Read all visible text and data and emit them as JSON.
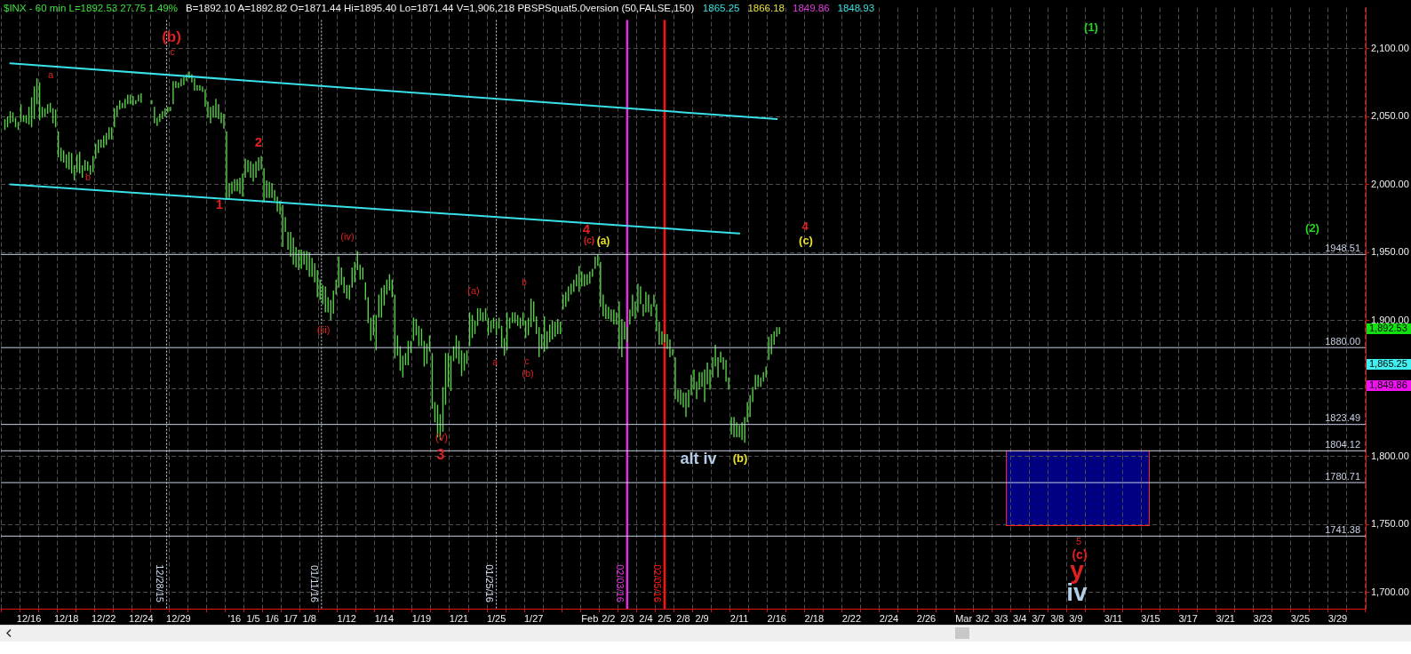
{
  "chart_data": {
    "type": "bar",
    "title": "$INX - 60 min L=1892.53 27.75 1.49%",
    "subtitle": "B=1892.10 A=1892.82 O=1871.44 Hi=1895.40 Lo=1871.44 V=1,906,218 PBSPSquat5.0version (50,FALSE,150)",
    "categories": [
      null,
      "12/16",
      null,
      "12/18",
      null,
      "12/22",
      null,
      "12/24",
      null,
      "12/29",
      null,
      null,
      "'16",
      "1/5",
      "1/6",
      "1/7",
      "1/8",
      null,
      "1/12",
      null,
      "1/14",
      null,
      "1/19",
      null,
      "1/21",
      null,
      "1/25",
      null,
      "1/27",
      null,
      null,
      "Feb",
      "2/2",
      "2/3",
      "2/4",
      "2/5",
      "2/8",
      "2/9",
      null,
      "2/11",
      null,
      "2/16",
      null,
      "2/18",
      null,
      "2/22",
      null,
      "2/24",
      null,
      "2/26",
      null,
      "Mar",
      "3/2",
      "3/3",
      "3/4",
      "3/7",
      "3/8",
      "3/9",
      null,
      "3/11",
      null,
      "3/15",
      null,
      "3/17",
      null,
      "3/21",
      null,
      "3/23",
      null,
      "3/25",
      null,
      "3/29",
      null
    ],
    "ylim": [
      1688,
      2130
    ],
    "yticks": [
      {
        "value": 1700,
        "label": "1,700.00"
      },
      {
        "value": 1750,
        "label": "1,750.00"
      },
      {
        "value": 1800,
        "label": "1,800.00"
      },
      {
        "value": 1850,
        "label": null
      },
      {
        "value": 1900,
        "label": "1,900.00"
      },
      {
        "value": 1950,
        "label": "1,950.00"
      },
      {
        "value": 2000,
        "label": "2,000.00"
      },
      {
        "value": 2050,
        "label": "2,050.00"
      },
      {
        "value": 2100,
        "label": "2,100.00"
      }
    ],
    "grid": true,
    "legend": false,
    "series": [
      {
        "color": "#58d048",
        "base": [
          null,
          2046,
          2047,
          2020,
          2009,
          2019,
          2042,
          2058,
          2059,
          2054,
          2078,
          2049,
          1989,
          2005,
          1987,
          1954,
          1938,
          1915,
          1924,
          1937,
          1878,
          1872,
          1885,
          1835,
          1848,
          1881,
          1889,
          1878,
          1887,
          1877,
          1908,
          1925,
          1910,
          1879,
          1906,
          1892,
          1842,
          1849,
          1858,
          1816,
          1829,
          1871,
          null,
          null,
          null,
          null,
          null,
          null,
          null,
          null,
          null,
          null,
          null,
          null,
          null,
          null,
          null,
          null,
          null,
          null,
          null,
          null,
          null,
          null,
          null,
          null,
          null,
          null,
          null,
          null,
          null,
          null,
          null
        ],
        "values": [
          null,
          13,
          28,
          19,
          13,
          11,
          14,
          7,
          3,
          3,
          5,
          12,
          50,
          14,
          25,
          31,
          14,
          15,
          23,
          14,
          26,
          47,
          17,
          41,
          26,
          25,
          13,
          28,
          13,
          26,
          11,
          11,
          33,
          35,
          21,
          20,
          31,
          15,
          15,
          13,
          16,
          17,
          null,
          null,
          null,
          null,
          null,
          null,
          null,
          null,
          null,
          null,
          null,
          null,
          null,
          null,
          null,
          null,
          null,
          null,
          null,
          null,
          null,
          null,
          null,
          null,
          null,
          null,
          null,
          null,
          null,
          null,
          null
        ]
      },
      {
        "color": "#58d048",
        "base": [
          2040,
          2046,
          2049,
          2017,
          2008,
          2023,
          2050,
          2059,
          2045,
          2059,
          2075,
          2045,
          1990,
          2009,
          1990,
          1965,
          1941,
          1912,
          1926,
          1930,
          1902,
          1874,
          1889,
          1825,
          1870,
          1887,
          1891,
          1894,
          1889,
          1879,
          1910,
          1925,
          1903,
          1873,
          1912,
          1882,
          1840,
          1842,
          1866,
          1814,
          1840,
          1875,
          null,
          null,
          null,
          null,
          null,
          null,
          null,
          null,
          null,
          null,
          null,
          null,
          null,
          null,
          null,
          null,
          null,
          null,
          null,
          null,
          null,
          null,
          null,
          null,
          null,
          null,
          null,
          null,
          null,
          null,
          null
        ],
        "values": [
          8,
          5,
          8,
          10,
          16,
          10,
          8,
          3,
          12,
          17,
          6,
          12,
          11,
          9,
          13,
          11,
          10,
          14,
          13,
          11,
          17,
          15,
          12,
          15,
          11,
          17,
          9,
          8,
          13,
          13,
          11,
          9,
          16,
          28,
          13,
          17,
          9,
          13,
          16,
          15,
          11,
          15,
          null,
          null,
          null,
          null,
          null,
          null,
          null,
          null,
          null,
          null,
          null,
          null,
          null,
          null,
          null,
          null,
          null,
          null,
          null,
          null,
          null,
          null,
          null,
          null,
          null,
          null,
          null,
          null,
          null,
          null,
          null
        ]
      },
      {
        "color": "#58d048",
        "base": [
          2042,
          2045,
          2050,
          2016,
          2005,
          2027,
          2055,
          2061,
          2043,
          2071,
          2069,
          2049,
          1993,
          2005,
          1990,
          1952,
          1937,
          1906,
          1920,
          1930,
          1902,
          1863,
          1881,
          1814,
          1872,
          1890,
          1894,
          1898,
          1895,
          1884,
          1914,
          1926,
          1901,
          1886,
          1903,
          1882,
          1838,
          1849,
          1858,
          1814,
          1849,
          1882,
          null,
          null,
          null,
          null,
          null,
          null,
          null,
          null,
          null,
          null,
          null,
          null,
          null,
          null,
          null,
          null,
          null,
          null,
          null,
          null,
          null,
          null,
          null,
          null,
          null,
          null,
          null,
          null,
          null,
          null,
          null
        ],
        "values": [
          8,
          6,
          6,
          9,
          9,
          6,
          7,
          5,
          6,
          5,
          9,
          9,
          9,
          12,
          12,
          13,
          14,
          19,
          12,
          9,
          22,
          18,
          15,
          24,
          17,
          10,
          8,
          8,
          21,
          13,
          11,
          8,
          11,
          13,
          9,
          10,
          11,
          13,
          15,
          11,
          11,
          10,
          null,
          null,
          null,
          null,
          null,
          null,
          null,
          null,
          null,
          null,
          null,
          null,
          null,
          null,
          null,
          null,
          null,
          null,
          null,
          null,
          null,
          null,
          null,
          null,
          null,
          null,
          null,
          null,
          null,
          null,
          null
        ]
      },
      {
        "color": "#58d048",
        "base": [
          2045,
          2044,
          2052,
          2012,
          2010,
          2027,
          2056,
          2060,
          2046,
          2071,
          2069,
          2049,
          1995,
          2002,
          1990,
          1947,
          1932,
          1906,
          1916,
          1915,
          1911,
          1858,
          1881,
          1812,
          1868,
          1896,
          1889,
          1898,
          1899,
          1886,
          1919,
          1927,
          1901,
          1884,
          1906,
          1884,
          1836,
          1851,
          1869,
          1814,
          1851,
          1888,
          null,
          null,
          null,
          null,
          null,
          null,
          null,
          null,
          null,
          null,
          null,
          null,
          null,
          null,
          null,
          null,
          null,
          null,
          null,
          null,
          null,
          null,
          null,
          null,
          null,
          null,
          null,
          null,
          null,
          null,
          null
        ],
        "values": [
          9,
          13,
          7,
          10,
          8,
          9,
          4,
          7,
          6,
          4,
          4,
          14,
          9,
          13,
          11,
          18,
          18,
          11,
          10,
          13,
          15,
          16,
          13,
          19,
          17,
          13,
          11,
          8,
          15,
          14,
          8,
          9,
          9,
          11,
          15,
          6,
          11,
          11,
          8,
          9,
          9,
          7,
          null,
          null,
          null,
          null,
          null,
          null,
          null,
          null,
          null,
          null,
          null,
          null,
          null,
          null,
          null,
          null,
          null,
          null,
          null,
          null,
          null,
          null,
          null,
          null,
          null,
          null,
          null,
          null,
          null,
          null,
          null
        ]
      },
      {
        "color": "#58d048",
        "base": [
          2046,
          2042,
          2053,
          2011,
          2010,
          2029,
          2056,
          null,
          2048,
          2072,
          2069,
          2048,
          1995,
          2005,
          1988,
          1941,
          1932,
          1900,
          1915,
          1898,
          1919,
          1867,
          1866,
          1818,
          1859,
          1900,
          1894,
          1896,
          1890,
          1888,
          1921,
          1932,
          1899,
          1897,
          1906,
          1879,
          1829,
          1840,
          1864,
          1812,
          1851,
          1890,
          null,
          null,
          null,
          null,
          null,
          null,
          null,
          null,
          null,
          null,
          null,
          null,
          null,
          null,
          null,
          null,
          null,
          null,
          null,
          null,
          null,
          null,
          null,
          null,
          null,
          null,
          null,
          null,
          null,
          null,
          null
        ],
        "values": [
          7,
          22,
          7,
          13,
          7,
          9,
          7,
          null,
          6,
          6,
          4,
          11,
          9,
          12,
          8,
          20,
          14,
          15,
          11,
          19,
          11,
          9,
          19,
          33,
          19,
          9,
          8,
          8,
          13,
          11,
          9,
          6,
          9,
          11,
          13,
          11,
          18,
          24,
          9,
          13,
          7,
          5,
          null,
          null,
          null,
          null,
          null,
          null,
          null,
          null,
          null,
          null,
          null,
          null,
          null,
          null,
          null,
          null,
          null,
          null,
          null,
          null,
          null,
          null,
          null,
          null,
          null,
          null,
          null,
          null,
          null,
          null,
          null
        ]
      },
      {
        "color": "#58d048",
        "base": [
          2042,
          2048,
          2045,
          2008,
          2007,
          2033,
          2059,
          null,
          2050,
          2073,
          2068,
          2045,
          1993,
          2010,
          1980,
          1939,
          1928,
          1905,
          1924,
          1885,
          1922,
          1867,
          1868,
          1838,
          1863,
          1899,
          1880,
          1894,
          1873,
          1890,
          1925,
          1938,
          1897,
          1903,
          1903,
          1873,
          1836,
          1853,
          1855,
          1810,
          1855,
          null,
          null,
          null,
          null,
          null,
          null,
          null,
          null,
          null,
          null,
          null,
          null,
          null,
          null,
          null,
          null,
          null,
          null,
          null,
          null,
          null,
          null,
          null,
          null,
          null,
          null,
          null,
          null,
          null,
          null,
          null,
          null
        ],
        "values": [
          7,
          24,
          11,
          15,
          7,
          9,
          7,
          null,
          6,
          6,
          4,
          8,
          12,
          10,
          11,
          15,
          14,
          17,
          15,
          17,
          12,
          18,
          15,
          38,
          13,
          7,
          16,
          8,
          22,
          11,
          9,
          9,
          11,
          16,
          9,
          13,
          13,
          16,
          16,
          19,
          7,
          null,
          null,
          null,
          null,
          null,
          null,
          null,
          null,
          null,
          null,
          null,
          null,
          null,
          null,
          null,
          null,
          null,
          null,
          null,
          null,
          null,
          null,
          null,
          null,
          null,
          null,
          null,
          null,
          null,
          null,
          null,
          null
        ]
      },
      {
        "color": "#58d048",
        "base": [
          2040,
          2059,
          2042,
          2003,
          2009,
          2033,
          2059,
          null,
          2053,
          2076,
          2057,
          2041,
          1991,
          2011,
          1978,
          1937,
          1917,
          1919,
          1928,
          1889,
          1917,
          1876,
          1877,
          1851,
          1868,
          1900,
          1874,
          1896,
          1879,
          1890,
          1921,
          1940,
          1897,
          1901,
          1910,
          1874,
          1845,
          1849,
          1849,
          1825,
          1858,
          null,
          null,
          null,
          null,
          null,
          null,
          null,
          null,
          null,
          null,
          null,
          null,
          null,
          null,
          null,
          null,
          null,
          null,
          null,
          null,
          null,
          null,
          null,
          null,
          null,
          null,
          null,
          null,
          null,
          null,
          null,
          null
        ],
        "values": [
          6,
          19,
          13,
          11,
          12,
          9,
          7,
          null,
          4,
          5,
          13,
          11,
          17,
          10,
          10,
          15,
          20,
          11,
          15,
          15,
          13,
          9,
          12,
          25,
          10,
          9,
          13,
          10,
          11,
          9,
          19,
          8.5,
          9,
          13,
          9,
          5,
          15,
          15,
          9,
          15,
          8,
          null,
          null,
          null,
          null,
          null,
          null,
          null,
          null,
          null,
          null,
          null,
          null,
          null,
          null,
          null,
          null,
          null,
          null,
          null,
          null,
          null,
          null,
          null,
          null,
          null,
          null,
          null,
          null,
          null,
          null,
          null,
          null
        ]
      },
      {
        "type": "line",
        "color": "#38e0e8",
        "values": [
          2089,
          null,
          null,
          null,
          null,
          null,
          null,
          null,
          null,
          null,
          null,
          null,
          null,
          null,
          null,
          null,
          null,
          null,
          null,
          null,
          null,
          null,
          null,
          null,
          null,
          null,
          null,
          null,
          null,
          null,
          null,
          null,
          null,
          null,
          null,
          null,
          null,
          null,
          null,
          null,
          null,
          2048,
          null,
          null,
          null,
          null,
          null,
          null,
          null,
          null,
          null,
          null,
          null,
          null,
          null,
          null,
          null,
          null,
          null,
          null,
          null,
          null,
          null,
          null,
          null,
          null,
          null,
          null,
          null,
          null,
          null,
          null,
          null
        ]
      },
      {
        "type": "line",
        "color": "#38e0e8",
        "values": [
          2000,
          null,
          null,
          null,
          null,
          null,
          null,
          null,
          null,
          null,
          null,
          null,
          null,
          null,
          null,
          null,
          null,
          null,
          null,
          null,
          null,
          null,
          null,
          null,
          null,
          null,
          null,
          null,
          null,
          null,
          null,
          null,
          null,
          null,
          null,
          null,
          null,
          null,
          null,
          1964,
          null,
          null,
          null,
          null,
          null,
          null,
          null,
          null,
          null,
          null,
          null,
          null,
          null,
          null,
          null,
          null,
          null,
          null,
          null,
          null,
          null,
          null,
          null,
          null,
          null,
          null,
          null,
          null,
          null,
          null,
          null,
          null,
          null
        ]
      }
    ],
    "ref_lines": [
      {
        "axis": "x",
        "value": "1/25",
        "label": "01/25/16",
        "color": "#d0dcf0",
        "line_style": "dotted"
      },
      {
        "axis": "x",
        "value": "2/3",
        "label": "02/03/16",
        "color": "#e030e0",
        "line_style": "solid"
      },
      {
        "axis": "x",
        "value": "2/5",
        "label": "02/05/16",
        "color": "#ff1010",
        "line_style": "solid"
      },
      {
        "axis": "y",
        "value": 1948.51,
        "label": "1948.51",
        "color": "#c8d2e6",
        "line_style": "solid"
      },
      {
        "axis": "y",
        "value": 1880,
        "label": "1880.00",
        "color": "#c8d2e6",
        "line_style": "solid"
      },
      {
        "axis": "y",
        "value": 1823.49,
        "label": "1823.49",
        "color": "#c8d2e6",
        "line_style": "solid"
      },
      {
        "axis": "y",
        "value": 1804.12,
        "label": "1804.12",
        "color": "#c8d2e6",
        "line_style": "solid"
      },
      {
        "axis": "y",
        "value": 1780.71,
        "label": "1780.71",
        "color": "#c8d2e6",
        "line_style": "solid"
      },
      {
        "axis": "y",
        "value": 1741.38,
        "label": "1741.38",
        "color": "#c8d2e6",
        "line_style": "solid"
      }
    ],
    "annotations": [
      "1865.25",
      "1866.18",
      "1849.86",
      "1848.93",
      "1,892.53",
      "1,865.25",
      "1,849.86",
      "(b)",
      "c",
      "a",
      "b",
      "1",
      "2",
      "(iv)",
      "(iii)",
      "(v)",
      "3",
      "(a)",
      "a",
      "b",
      "c",
      "(b)",
      "4",
      "(c)",
      "(a)",
      "alt iv",
      "(b)",
      "4",
      "(c)",
      "(1)",
      "(2)",
      "5",
      "(c)",
      "y",
      "iv",
      "12/28/15",
      "01/11/16"
    ]
  }
}
